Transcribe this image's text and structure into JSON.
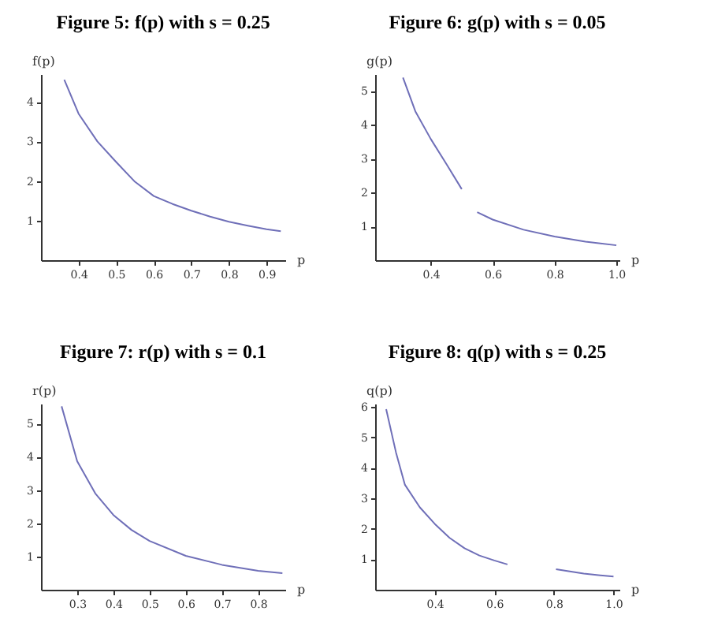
{
  "chart_data": [
    {
      "type": "line",
      "title": "Figure 5: f(p) with s = 0.25",
      "xlabel": "p",
      "ylabel": "f(p)",
      "x": [
        0.362,
        0.4,
        0.45,
        0.5,
        0.55,
        0.6,
        0.65,
        0.7,
        0.75,
        0.8,
        0.85,
        0.9,
        0.938
      ],
      "series": [
        {
          "color": "#6f6fb8",
          "values": [
            4.56,
            3.7,
            3.0,
            2.48,
            1.98,
            1.62,
            1.42,
            1.25,
            1.1,
            0.97,
            0.87,
            0.78,
            0.73
          ]
        }
      ],
      "xlim": [
        0.3,
        0.95
      ],
      "ylim": [
        0,
        4.7
      ],
      "xticks": [
        0.4,
        0.5,
        0.6,
        0.7,
        0.8,
        0.9
      ],
      "yticks": [
        1,
        2,
        3,
        4
      ],
      "grid": false
    },
    {
      "type": "line",
      "title": "Figure 6: g(p) with s = 0.05",
      "xlabel": "p",
      "ylabel": "g(p)",
      "x": [
        0.31,
        0.35,
        0.4,
        0.45,
        0.5,
        0.525,
        0.55,
        0.6,
        0.7,
        0.8,
        0.9,
        1.0
      ],
      "series": [
        {
          "color": "#6f6fb8",
          "values": [
            5.4,
            4.4,
            3.58,
            2.85,
            2.1,
            null,
            1.42,
            1.2,
            0.9,
            0.7,
            0.55,
            0.44
          ]
        }
      ],
      "xlim": [
        0.22,
        1.01
      ],
      "ylim": [
        0,
        5.5
      ],
      "xticks": [
        0.4,
        0.6,
        0.8,
        {
          "value": 1,
          "label": "1.0"
        }
      ],
      "yticks": [
        1,
        2,
        3,
        4,
        5
      ],
      "grid": false
    },
    {
      "type": "line",
      "title": "Figure 7: r(p) with s = 0.1",
      "xlabel": "p",
      "ylabel": "r(p)",
      "x": [
        0.257,
        0.3,
        0.35,
        0.4,
        0.45,
        0.5,
        0.6,
        0.7,
        0.8,
        0.867
      ],
      "series": [
        {
          "color": "#6f6fb8",
          "values": [
            5.52,
            3.87,
            2.9,
            2.25,
            1.8,
            1.47,
            1.02,
            0.75,
            0.57,
            0.5
          ]
        }
      ],
      "xlim": [
        0.2,
        0.875
      ],
      "ylim": [
        0,
        5.6
      ],
      "xticks": [
        0.3,
        0.4,
        0.5,
        0.6,
        0.7,
        0.8
      ],
      "yticks": [
        1,
        2,
        3,
        4,
        5
      ],
      "grid": false
    },
    {
      "type": "line",
      "title": "Figure 8: q(p) with s = 0.25",
      "xlabel": "p",
      "ylabel": "q(p)",
      "x": [
        0.237,
        0.27,
        0.3,
        0.35,
        0.4,
        0.45,
        0.5,
        0.55,
        0.6,
        0.644,
        0.72,
        0.807,
        0.9,
        1.0
      ],
      "series": [
        {
          "color": "#6f6fb8",
          "values": [
            5.92,
            4.5,
            3.44,
            2.7,
            2.16,
            1.7,
            1.36,
            1.12,
            0.96,
            0.83,
            null,
            0.67,
            0.53,
            0.43
          ]
        }
      ],
      "xlim": [
        0.2,
        1.02
      ],
      "ylim": [
        0,
        6.1
      ],
      "xticks": [
        0.4,
        0.6,
        0.8,
        {
          "value": 1,
          "label": "1.0"
        }
      ],
      "yticks": [
        1,
        2,
        3,
        4,
        5,
        6
      ],
      "grid": false
    }
  ]
}
